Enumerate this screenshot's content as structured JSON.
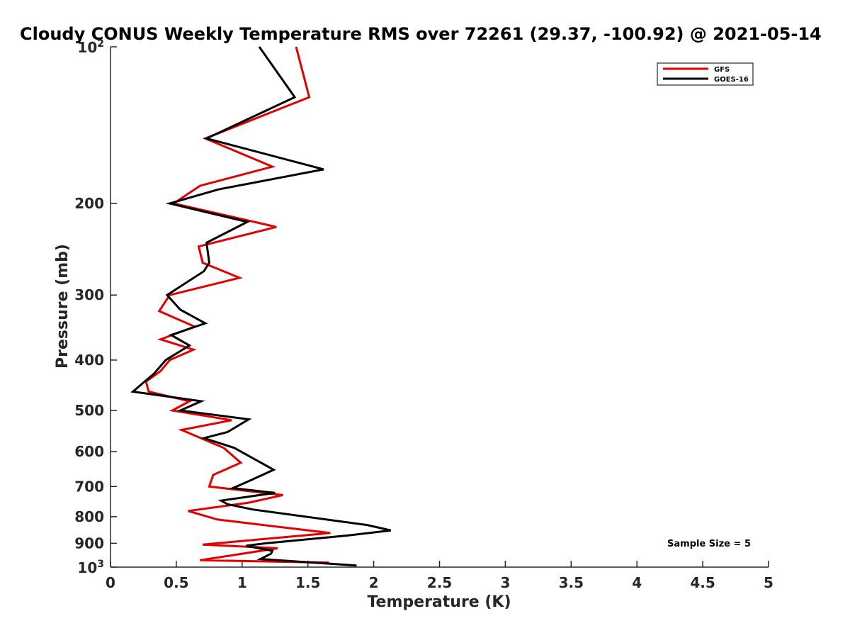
{
  "chart_data": {
    "type": "line",
    "title": "Cloudy CONUS Weekly Temperature RMS over 72261 (29.37, -100.92) @ 2021-05-14",
    "xlabel": "Temperature (K)",
    "ylabel": "Pressure (mb)",
    "xlim": [
      0,
      5
    ],
    "ylim": [
      100,
      1000
    ],
    "y_scale": "log",
    "y_reversed": true,
    "grid": false,
    "legend_position": "top-right",
    "x_ticks": [
      {
        "value": 0,
        "label": "0"
      },
      {
        "value": 0.5,
        "label": "0.5"
      },
      {
        "value": 1,
        "label": "1"
      },
      {
        "value": 1.5,
        "label": "1.5"
      },
      {
        "value": 2,
        "label": "2"
      },
      {
        "value": 2.5,
        "label": "2.5"
      },
      {
        "value": 3,
        "label": "3"
      },
      {
        "value": 3.5,
        "label": "3.5"
      },
      {
        "value": 4,
        "label": "4"
      },
      {
        "value": 4.5,
        "label": "4.5"
      },
      {
        "value": 5,
        "label": "5"
      }
    ],
    "y_ticks": [
      {
        "value": 100,
        "base": "10",
        "exp": "2"
      },
      {
        "value": 200,
        "label": "200"
      },
      {
        "value": 300,
        "label": "300"
      },
      {
        "value": 400,
        "label": "400"
      },
      {
        "value": 500,
        "label": "500"
      },
      {
        "value": 600,
        "label": "600"
      },
      {
        "value": 700,
        "label": "700"
      },
      {
        "value": 800,
        "label": "800"
      },
      {
        "value": 900,
        "label": "900"
      },
      {
        "value": 1000,
        "base": "10",
        "exp": "3"
      }
    ],
    "annotation": "Sample Size = 5",
    "series": [
      {
        "name": "GFS",
        "color": "#e00000",
        "points": [
          [
            1.41,
            100
          ],
          [
            1.51,
            125
          ],
          [
            0.72,
            150
          ],
          [
            1.23,
            170
          ],
          [
            0.68,
            185
          ],
          [
            0.48,
            200
          ],
          [
            1.26,
            222
          ],
          [
            0.67,
            242
          ],
          [
            0.7,
            260
          ],
          [
            0.98,
            278
          ],
          [
            0.45,
            300
          ],
          [
            0.37,
            322
          ],
          [
            0.64,
            345
          ],
          [
            0.38,
            365
          ],
          [
            0.63,
            382
          ],
          [
            0.45,
            400
          ],
          [
            0.38,
            420
          ],
          [
            0.27,
            440
          ],
          [
            0.29,
            460
          ],
          [
            0.6,
            480
          ],
          [
            0.47,
            500
          ],
          [
            0.92,
            522
          ],
          [
            0.54,
            545
          ],
          [
            0.86,
            590
          ],
          [
            0.99,
            630
          ],
          [
            0.78,
            665
          ],
          [
            0.75,
            700
          ],
          [
            1.31,
            727
          ],
          [
            1.05,
            752
          ],
          [
            0.59,
            780
          ],
          [
            0.81,
            810
          ],
          [
            1.67,
            860
          ],
          [
            0.7,
            905
          ],
          [
            1.27,
            920
          ],
          [
            0.68,
            970
          ],
          [
            1.66,
            980
          ]
        ]
      },
      {
        "name": "GOES-16",
        "color": "#000000",
        "points": [
          [
            1.13,
            100
          ],
          [
            1.4,
            125
          ],
          [
            0.73,
            150
          ],
          [
            1.62,
            172
          ],
          [
            0.82,
            188
          ],
          [
            0.45,
            200
          ],
          [
            1.04,
            217
          ],
          [
            0.73,
            238
          ],
          [
            0.75,
            260
          ],
          [
            0.71,
            270
          ],
          [
            0.43,
            300
          ],
          [
            0.53,
            320
          ],
          [
            0.72,
            340
          ],
          [
            0.46,
            358
          ],
          [
            0.6,
            375
          ],
          [
            0.42,
            400
          ],
          [
            0.33,
            425
          ],
          [
            0.17,
            460
          ],
          [
            0.69,
            480
          ],
          [
            0.53,
            500
          ],
          [
            1.05,
            520
          ],
          [
            0.89,
            550
          ],
          [
            0.71,
            565
          ],
          [
            0.94,
            590
          ],
          [
            1.24,
            650
          ],
          [
            1.07,
            680
          ],
          [
            0.93,
            705
          ],
          [
            1.25,
            720
          ],
          [
            0.84,
            745
          ],
          [
            0.89,
            757
          ],
          [
            1.08,
            775
          ],
          [
            1.95,
            830
          ],
          [
            2.13,
            850
          ],
          [
            1.79,
            870
          ],
          [
            1.18,
            900
          ],
          [
            1.03,
            910
          ],
          [
            1.23,
            930
          ],
          [
            1.22,
            942
          ],
          [
            1.14,
            965
          ],
          [
            1.87,
            993
          ]
        ]
      }
    ]
  }
}
